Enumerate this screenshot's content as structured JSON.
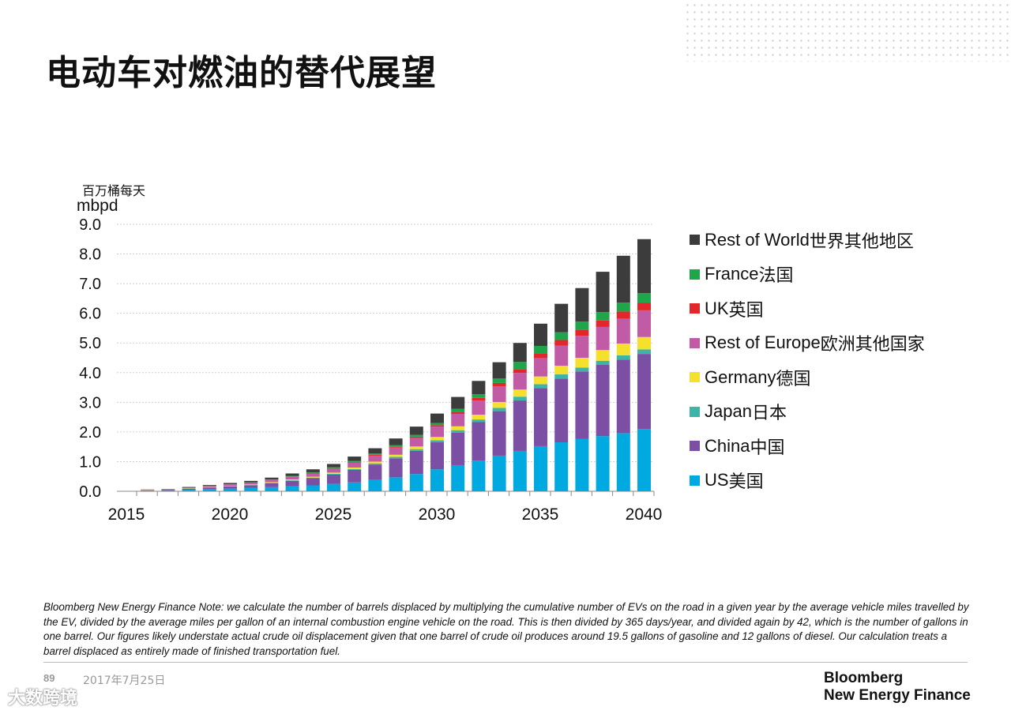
{
  "title": "电动车对燃油的替代展望",
  "footer": {
    "page": "89",
    "date": "2017年7月25日",
    "logo_line1": "Bloomberg",
    "logo_line2": "New Energy Finance",
    "watermark": "大数跨境"
  },
  "note": "Bloomberg New Energy Finance Note: we calculate the number of barrels displaced by multiplying the cumulative number of EVs on the road in a given year by the average vehicle miles travelled by the EV, divided by the average miles per gallon of an internal combustion engine vehicle on the road. This is then divided by 365 days/year, and divided again by 42, which is the number of gallons in one barrel. Our figures likely understate actual crude oil displacement given that one barrel of crude oil produces around 19.5 gallons of gasoline and 12 gallons of diesel. Our calculation treats a barrel displaced as entirely made of finished transportation fuel.",
  "chart_data": {
    "type": "bar",
    "stacked": true,
    "ylabel_cn": "百万桶每天",
    "ylabel": "mbpd",
    "ylim": [
      0,
      9
    ],
    "yticks": [
      "0.0",
      "1.0",
      "2.0",
      "3.0",
      "4.0",
      "5.0",
      "6.0",
      "7.0",
      "8.0",
      "9.0"
    ],
    "xticks": [
      "2015",
      "2020",
      "2025",
      "2030",
      "2035",
      "2040"
    ],
    "grid": true,
    "legend_position": "right",
    "categories": [
      2016,
      2017,
      2018,
      2019,
      2020,
      2021,
      2022,
      2023,
      2024,
      2025,
      2026,
      2027,
      2028,
      2029,
      2030,
      2031,
      2032,
      2033,
      2034,
      2035,
      2036,
      2037,
      2038,
      2039,
      2040
    ],
    "series": [
      {
        "name": "US",
        "name_cn": "美国",
        "color": "#00A9E0",
        "values": [
          0.02,
          0.03,
          0.05,
          0.07,
          0.09,
          0.11,
          0.14,
          0.17,
          0.2,
          0.25,
          0.3,
          0.38,
          0.47,
          0.58,
          0.74,
          0.88,
          1.03,
          1.2,
          1.36,
          1.52,
          1.65,
          1.76,
          1.86,
          1.96,
          2.1
        ]
      },
      {
        "name": "China",
        "name_cn": "中国",
        "color": "#7B4FA3",
        "values": [
          0.01,
          0.02,
          0.03,
          0.05,
          0.07,
          0.09,
          0.13,
          0.18,
          0.24,
          0.31,
          0.42,
          0.52,
          0.64,
          0.78,
          0.91,
          1.1,
          1.3,
          1.5,
          1.7,
          1.96,
          2.15,
          2.28,
          2.4,
          2.48,
          2.53
        ]
      },
      {
        "name": "Japan",
        "name_cn": "日本",
        "color": "#3DB5A6",
        "values": [
          0.005,
          0.005,
          0.01,
          0.01,
          0.01,
          0.01,
          0.02,
          0.02,
          0.02,
          0.03,
          0.03,
          0.04,
          0.05,
          0.06,
          0.07,
          0.08,
          0.09,
          0.11,
          0.13,
          0.13,
          0.14,
          0.13,
          0.14,
          0.14,
          0.15
        ]
      },
      {
        "name": "Germany",
        "name_cn": "德国",
        "color": "#F5E02E",
        "values": [
          0.005,
          0.005,
          0.01,
          0.01,
          0.01,
          0.02,
          0.02,
          0.03,
          0.03,
          0.04,
          0.05,
          0.06,
          0.07,
          0.09,
          0.11,
          0.13,
          0.16,
          0.2,
          0.24,
          0.26,
          0.29,
          0.33,
          0.36,
          0.4,
          0.42
        ]
      },
      {
        "name": "Rest of Europe",
        "name_cn": "欧洲其他国家",
        "color": "#C25BA6",
        "values": [
          0.01,
          0.01,
          0.02,
          0.03,
          0.04,
          0.05,
          0.07,
          0.09,
          0.11,
          0.13,
          0.17,
          0.2,
          0.24,
          0.29,
          0.35,
          0.42,
          0.48,
          0.53,
          0.56,
          0.62,
          0.68,
          0.74,
          0.78,
          0.84,
          0.9
        ]
      },
      {
        "name": "UK",
        "name_cn": "英国",
        "color": "#E3262B",
        "values": [
          0,
          0,
          0,
          0.005,
          0.01,
          0.01,
          0.01,
          0.01,
          0.02,
          0.02,
          0.02,
          0.03,
          0.03,
          0.04,
          0.05,
          0.07,
          0.09,
          0.11,
          0.13,
          0.16,
          0.19,
          0.21,
          0.22,
          0.24,
          0.25
        ]
      },
      {
        "name": "France",
        "name_cn": "法国",
        "color": "#1FA64A",
        "values": [
          0,
          0,
          0.005,
          0.005,
          0.01,
          0.01,
          0.01,
          0.02,
          0.02,
          0.03,
          0.03,
          0.04,
          0.05,
          0.06,
          0.07,
          0.1,
          0.12,
          0.15,
          0.24,
          0.25,
          0.26,
          0.27,
          0.28,
          0.3,
          0.33
        ]
      },
      {
        "name": "Rest of World",
        "name_cn": "世界其他地区",
        "color": "#3C3C3C",
        "values": [
          0.01,
          0.01,
          0.02,
          0.03,
          0.04,
          0.05,
          0.06,
          0.08,
          0.1,
          0.11,
          0.15,
          0.18,
          0.23,
          0.28,
          0.32,
          0.4,
          0.45,
          0.55,
          0.64,
          0.75,
          0.96,
          1.13,
          1.36,
          1.58,
          1.82
        ]
      }
    ]
  }
}
